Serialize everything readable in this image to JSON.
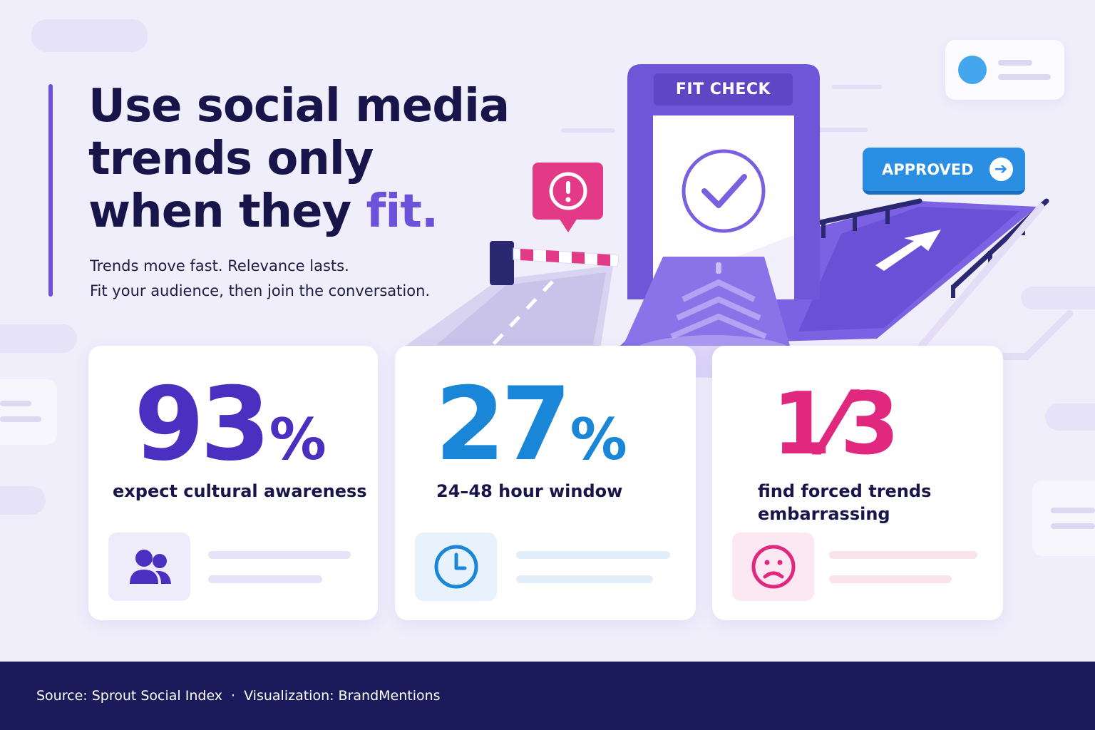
{
  "headline": {
    "line1": "Use social media",
    "line2": "trends only",
    "line3_prefix": "when they ",
    "line3_accent": "fit."
  },
  "subtext": {
    "line1": "Trends move fast. Relevance lasts.",
    "line2": "Fit your audience, then join the conversation."
  },
  "illustration": {
    "gate_label": "FIT CHECK",
    "approved_label": "APPROVED",
    "icons": [
      "warning-icon",
      "check-circle-icon",
      "arrow-right-icon",
      "road-arrow-icon"
    ]
  },
  "stats": [
    {
      "value": "93",
      "suffix": "%",
      "label": "expect cultural awareness",
      "color": "#4a2fc0",
      "icon": "users-icon"
    },
    {
      "value": "27",
      "suffix": "%",
      "label": "24–48 hour window",
      "color": "#1a86d8",
      "icon": "clock-icon"
    },
    {
      "value": "1⁄3",
      "suffix": "",
      "label_line1": "find forced trends",
      "label_line2": "embarrassing",
      "color": "#e0287f",
      "icon": "sad-face-icon"
    }
  ],
  "footer": {
    "source": "Source: Sprout Social Index",
    "separator": "·",
    "visualization": "Visualization: BrandMentions"
  },
  "colors": {
    "background": "#f0eefb",
    "accent_purple": "#6c52d9",
    "blue": "#1a86d8",
    "pink": "#e0287f",
    "footer": "#1b1b5c"
  }
}
